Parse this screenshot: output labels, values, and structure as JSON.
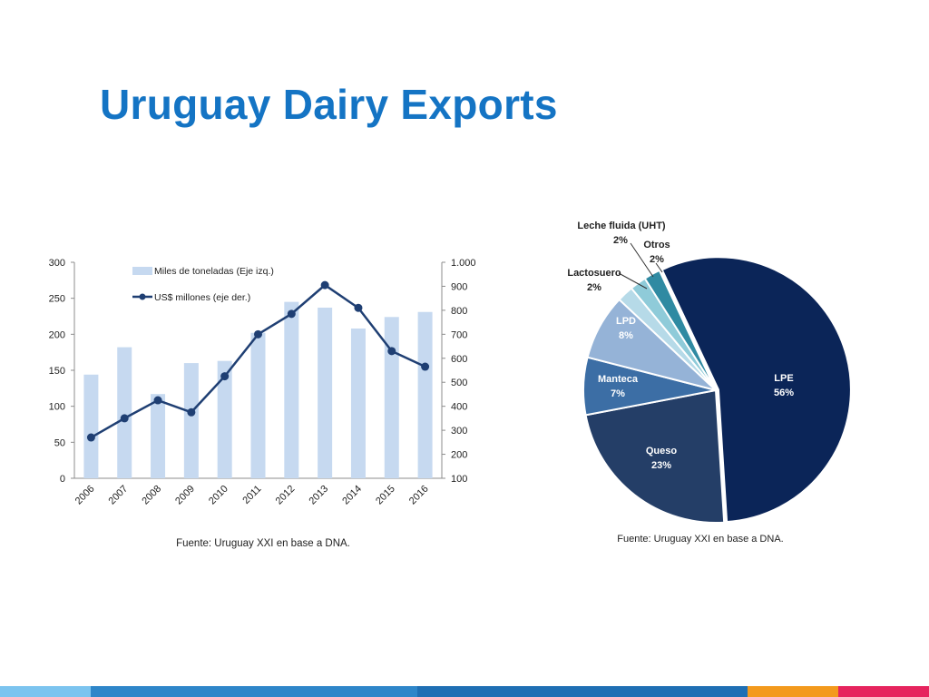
{
  "slide": {
    "title": "Uruguay Dairy Exports",
    "footer_colors": [
      "#7cc4ef",
      "#2e86c9",
      "#1f6fb4",
      "#f39a1d",
      "#e6245e"
    ]
  },
  "chart_data": [
    {
      "type": "bar",
      "categories": [
        "2006",
        "2007",
        "2008",
        "2009",
        "2010",
        "2011",
        "2012",
        "2013",
        "2014",
        "2015",
        "2016"
      ],
      "series": [
        {
          "name": "Miles de toneladas (Eje izq.)",
          "type": "bar",
          "axis": "left",
          "values": [
            144,
            182,
            117,
            160,
            163,
            202,
            245,
            237,
            208,
            224,
            231
          ],
          "color": "#c6d9f0"
        },
        {
          "name": "US$ millones (eje der.)",
          "type": "line",
          "axis": "right",
          "values": [
            270,
            350,
            425,
            375,
            525,
            700,
            785,
            905,
            810,
            630,
            565
          ],
          "color": "#1f3f73"
        }
      ],
      "ylim_left": [
        0,
        300
      ],
      "yticks_left": [
        "0",
        "50",
        "100",
        "150",
        "200",
        "250",
        "300"
      ],
      "ylim_right": [
        100,
        1000
      ],
      "yticks_right": [
        "100",
        "200",
        "300",
        "400",
        "500",
        "600",
        "700",
        "800",
        "900",
        "1.000"
      ],
      "source": "Fuente: Uruguay XXI en base a DNA.",
      "legend_position": "top-left"
    },
    {
      "type": "pie",
      "slices": [
        {
          "label": "LPE",
          "pct": "56%",
          "value": 56,
          "color": "#0b2558"
        },
        {
          "label": "Queso",
          "pct": "23%",
          "value": 23,
          "color": "#243e67"
        },
        {
          "label": "Manteca",
          "pct": "7%",
          "value": 7,
          "color": "#3c6ea5"
        },
        {
          "label": "LPD",
          "pct": "8%",
          "value": 8,
          "color": "#95b3d7"
        },
        {
          "label": "Lactosuero",
          "pct": "2%",
          "value": 2,
          "color": "#b6dae8"
        },
        {
          "label": "Leche fluida (UHT)",
          "pct": "2%",
          "value": 2,
          "color": "#8fcbd9"
        },
        {
          "label": "Otros",
          "pct": "2%",
          "value": 2,
          "color": "#2f8aa2"
        }
      ],
      "source": "Fuente: Uruguay XXI en base a DNA."
    }
  ]
}
